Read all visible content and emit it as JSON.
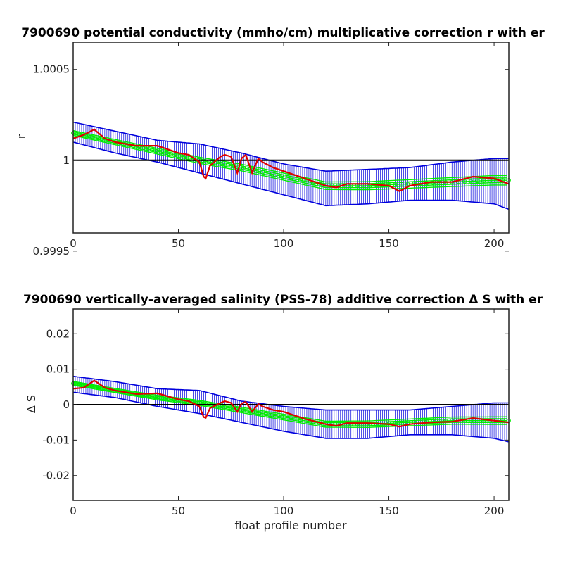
{
  "chart_data": [
    {
      "type": "line",
      "title": "7900690 potential conductivity (mmho/cm) multiplicative correction r with er",
      "xlabel": "",
      "ylabel": "r",
      "xlim": [
        0,
        207
      ],
      "ylim": [
        0.9996,
        1.00065
      ],
      "xticks": [
        0,
        50,
        100,
        150,
        200
      ],
      "xtick_labels": [
        "0",
        "50",
        "100",
        "150",
        "200"
      ],
      "yticks": [
        0.9995,
        1,
        1.0005
      ],
      "ytick_labels": [
        "0.9995",
        "1",
        "1.0005"
      ],
      "reference_line": 1,
      "grid": false,
      "colors": {
        "error_bars": "#0000dd",
        "fit": "#00ee00",
        "correction": "#dd0000",
        "reference": "#000000"
      },
      "series": [
        {
          "role": "error-envelope",
          "x": [
            0,
            20,
            40,
            60,
            80,
            100,
            120,
            140,
            160,
            180,
            200,
            207
          ],
          "upper": [
            1.00021,
            1.00016,
            1.00011,
            1.00009,
            1.00004,
            0.99998,
            0.99994,
            0.99995,
            0.99996,
            0.99999,
            1.00001,
            1.00001
          ],
          "lower": [
            1.0001,
            1.00004,
            0.99999,
            0.99993,
            0.99987,
            0.99981,
            0.99975,
            0.99976,
            0.99978,
            0.99978,
            0.99976,
            0.99973
          ]
        },
        {
          "role": "fit",
          "x": [
            0,
            20,
            40,
            60,
            80,
            100,
            120,
            140,
            160,
            180,
            200,
            207
          ],
          "y": [
            1.00015,
            1.0001,
            1.00005,
            1.0,
            0.99996,
            0.99991,
            0.99986,
            0.99986,
            0.99987,
            0.99988,
            0.99989,
            0.99989
          ]
        },
        {
          "role": "correction",
          "x": [
            0,
            5,
            10,
            15,
            20,
            30,
            40,
            50,
            55,
            60,
            62,
            63,
            65,
            70,
            72,
            75,
            78,
            80,
            82,
            85,
            88,
            90,
            95,
            100,
            110,
            120,
            125,
            130,
            140,
            150,
            155,
            160,
            170,
            180,
            190,
            200,
            207
          ],
          "y": [
            1.00012,
            1.00014,
            1.00017,
            1.00012,
            1.0001,
            1.00008,
            1.00008,
            1.00004,
            1.00003,
            0.99999,
            0.99991,
            0.9999,
            0.99997,
            1.00002,
            1.00003,
            1.00002,
            0.99993,
            1.00001,
            1.00003,
            0.99993,
            1.00001,
            0.99999,
            0.99996,
            0.99994,
            0.9999,
            0.99986,
            0.99985,
            0.99987,
            0.99987,
            0.99986,
            0.99983,
            0.99986,
            0.99988,
            0.99988,
            0.99991,
            0.9999,
            0.99987
          ]
        }
      ]
    },
    {
      "type": "line",
      "title": "7900690 vertically-averaged salinity (PSS-78) additive correction Δ S with er",
      "xlabel": "float profile number",
      "ylabel": "Δ S",
      "xlim": [
        0,
        207
      ],
      "ylim": [
        -0.027,
        0.027
      ],
      "xticks": [
        0,
        50,
        100,
        150,
        200
      ],
      "xtick_labels": [
        "0",
        "50",
        "100",
        "150",
        "200"
      ],
      "yticks": [
        -0.02,
        -0.01,
        0,
        0.01,
        0.02
      ],
      "ytick_labels": [
        "-0.02",
        "-0.01",
        "0",
        "0.01",
        "0.02"
      ],
      "reference_line": 0,
      "grid": false,
      "colors": {
        "error_bars": "#0000dd",
        "fit": "#00ee00",
        "correction": "#dd0000",
        "reference": "#000000"
      },
      "series": [
        {
          "role": "error-envelope",
          "x": [
            0,
            20,
            40,
            60,
            80,
            100,
            120,
            140,
            160,
            180,
            200,
            207
          ],
          "upper": [
            0.008,
            0.0065,
            0.0045,
            0.004,
            0.001,
            -0.0005,
            -0.0015,
            -0.0015,
            -0.0015,
            -0.0005,
            0.0005,
            0.0005
          ],
          "lower": [
            0.0035,
            0.002,
            -0.0005,
            -0.0025,
            -0.005,
            -0.0075,
            -0.0095,
            -0.0095,
            -0.0085,
            -0.0085,
            -0.0095,
            -0.0105
          ]
        },
        {
          "role": "fit",
          "x": [
            0,
            20,
            40,
            60,
            80,
            100,
            120,
            140,
            160,
            180,
            200,
            207
          ],
          "y": [
            0.006,
            0.004,
            0.002,
            0.0005,
            -0.0015,
            -0.0035,
            -0.0055,
            -0.0055,
            -0.005,
            -0.0045,
            -0.0045,
            -0.0045
          ]
        },
        {
          "role": "correction",
          "x": [
            0,
            5,
            10,
            15,
            20,
            30,
            40,
            50,
            55,
            60,
            62,
            63,
            65,
            70,
            72,
            75,
            78,
            80,
            82,
            85,
            88,
            90,
            95,
            100,
            110,
            120,
            125,
            130,
            140,
            150,
            155,
            160,
            170,
            180,
            190,
            200,
            207
          ],
          "y": [
            0.0045,
            0.0048,
            0.0068,
            0.0048,
            0.004,
            0.003,
            0.0032,
            0.0015,
            0.001,
            -0.0005,
            -0.0035,
            -0.0037,
            -0.001,
            0.0005,
            0.001,
            0.0005,
            -0.002,
            0.0003,
            0.0008,
            -0.002,
            0.0002,
            -0.0005,
            -0.0015,
            -0.002,
            -0.004,
            -0.0055,
            -0.006,
            -0.0052,
            -0.0052,
            -0.0055,
            -0.0062,
            -0.0055,
            -0.005,
            -0.0048,
            -0.0038,
            -0.0045,
            -0.005
          ]
        }
      ]
    }
  ]
}
